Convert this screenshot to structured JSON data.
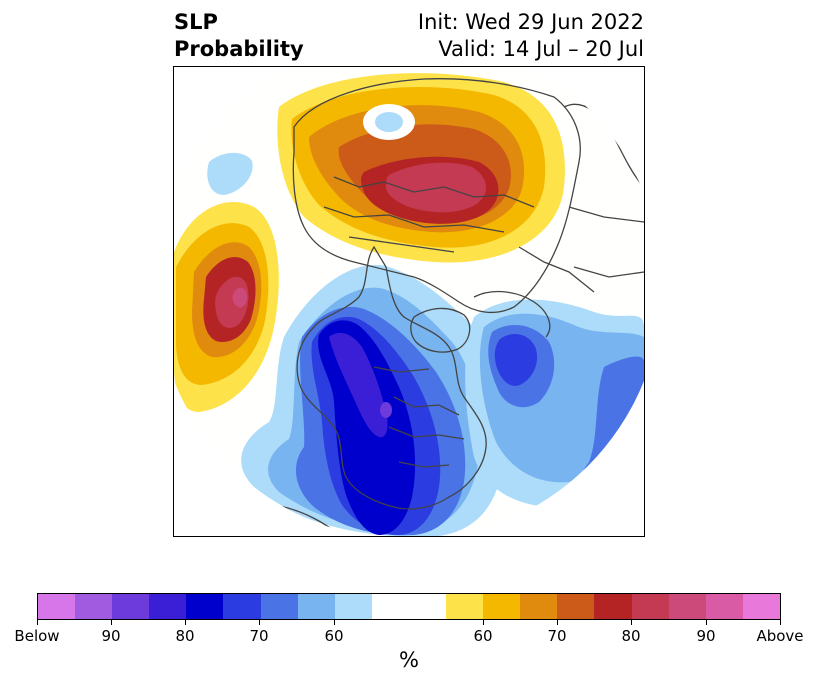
{
  "title": {
    "left_line1": "SLP",
    "left_line2": "Probability",
    "right_line1": "Init: Wed 29 Jun 2022",
    "right_line2": "Valid: 14 Jul – 20 Jul"
  },
  "colorbar": {
    "unit": "%",
    "colors": [
      "#d676e8",
      "#a05be0",
      "#6d3adb",
      "#3a1fd6",
      "#0000cc",
      "#2b3de0",
      "#4a74e6",
      "#78b4f0",
      "#acdcfa",
      "#ffffff",
      "#fde24a",
      "#f5b800",
      "#e08a0e",
      "#cc5a18",
      "#b52424",
      "#c43a52",
      "#cc4a7a",
      "#d95aa5",
      "#e878d9"
    ],
    "labels": [
      "Below",
      "90",
      "80",
      "70",
      "60",
      "60",
      "70",
      "80",
      "90",
      "Above"
    ]
  },
  "map": {
    "projection": "north-polar-stereographic",
    "regions": [
      {
        "category": "above-normal",
        "location": "Eurasia / Siberia",
        "peak_percent": "80-85"
      },
      {
        "category": "above-normal",
        "location": "North Pacific",
        "peak_percent": "80-90"
      },
      {
        "category": "below-normal",
        "location": "North America",
        "peak_percent": "80-90"
      },
      {
        "category": "below-normal",
        "location": "North Atlantic",
        "peak_percent": "70-80"
      }
    ]
  }
}
